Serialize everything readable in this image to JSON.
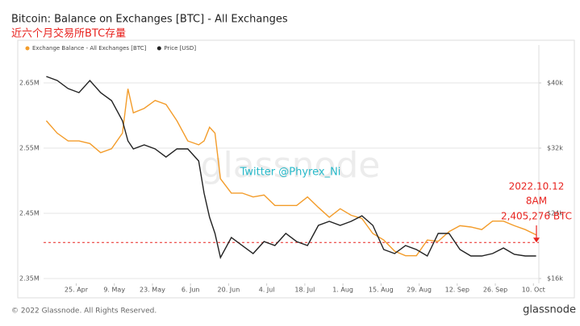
{
  "chart_data": {
    "type": "line",
    "title": "Bitcoin: Balance on Exchanges [BTC] - All Exchanges",
    "subtitle": "近六个月交易所BTC存量",
    "x": [
      104,
      108,
      112,
      116,
      120,
      124,
      128,
      132,
      134,
      136,
      140,
      144,
      148,
      152,
      156,
      160,
      162,
      164,
      166,
      168,
      172,
      176,
      180,
      184,
      188,
      192,
      196,
      200,
      204,
      208,
      212,
      216,
      220,
      224,
      228,
      232,
      236,
      240,
      244,
      248,
      252,
      256,
      260,
      264,
      268,
      272,
      276,
      280,
      284
    ],
    "xlim": [
      103,
      285
    ],
    "xticks": [
      {
        "value": 115,
        "label": "25. Apr"
      },
      {
        "value": 129,
        "label": "9. May"
      },
      {
        "value": 143,
        "label": "23. May"
      },
      {
        "value": 157,
        "label": "6. Jun"
      },
      {
        "value": 171,
        "label": "20. Jun"
      },
      {
        "value": 185,
        "label": "4. Jul"
      },
      {
        "value": 199,
        "label": "18. Jul"
      },
      {
        "value": 213,
        "label": "1. Aug"
      },
      {
        "value": 227,
        "label": "15. Aug"
      },
      {
        "value": 241,
        "label": "29. Aug"
      },
      {
        "value": 255,
        "label": "12. Sep"
      },
      {
        "value": 269,
        "label": "26. Sep"
      },
      {
        "value": 283,
        "label": "10. Oct"
      }
    ],
    "ylim": [
      2342600,
      2690700
    ],
    "yticks": [
      {
        "value": 2350000,
        "label": "2.35M"
      },
      {
        "value": 2450000,
        "label": "2.45M"
      },
      {
        "value": 2550000,
        "label": "2.55M"
      },
      {
        "value": 2650000,
        "label": "2.65M"
      }
    ],
    "y2lim": [
      15410,
      43260
    ],
    "y2ticks": [
      {
        "value": 16000,
        "label": "$16k"
      },
      {
        "value": 24000,
        "label": "$24k"
      },
      {
        "value": 32000,
        "label": "$32k"
      },
      {
        "value": 40000,
        "label": "$40k"
      }
    ],
    "grid": true,
    "legend": "top-left",
    "series": [
      {
        "name": "Exchange Balance - All Exchanges [BTC]",
        "color": "#f39c2a",
        "values": [
          2592000,
          2573000,
          2561000,
          2561000,
          2557000,
          2543000,
          2549000,
          2573000,
          2641000,
          2604000,
          2611000,
          2623000,
          2617000,
          2592000,
          2561000,
          2555000,
          2561000,
          2582000,
          2573000,
          2503000,
          2481000,
          2481000,
          2475000,
          2478000,
          2462000,
          2462000,
          2462000,
          2475000,
          2459000,
          2444000,
          2457000,
          2447000,
          2442000,
          2419000,
          2409000,
          2392000,
          2385000,
          2385000,
          2409000,
          2407000,
          2422000,
          2431000,
          2429000,
          2425000,
          2438000,
          2438000,
          2431000,
          2425000,
          2417000
        ]
      },
      {
        "name": "Price [USD]",
        "color": "#222222",
        "axis": "y2",
        "values": [
          40790,
          40300,
          39310,
          38810,
          40300,
          38810,
          37830,
          35360,
          32890,
          31900,
          32400,
          31900,
          30910,
          31900,
          31900,
          30420,
          26470,
          23510,
          21530,
          18570,
          21040,
          20050,
          19060,
          20540,
          20050,
          21530,
          20540,
          20050,
          22520,
          23010,
          22520,
          23010,
          23700,
          22520,
          19560,
          19060,
          20050,
          19560,
          18770,
          21530,
          21530,
          19560,
          18770,
          18770,
          19060,
          19750,
          18970,
          18770,
          18770
        ]
      }
    ],
    "annotation": {
      "date": "2022.10.12",
      "time": "8AM",
      "label": "2,405,276 BTC",
      "value": 2405276,
      "color": "#e8231f"
    },
    "watermark": "glassnode",
    "credit": "Twitter @Phyrex_Ni",
    "footer": "© 2022 Glassnode. All Rights Reserved.",
    "logo": "glassnode"
  }
}
